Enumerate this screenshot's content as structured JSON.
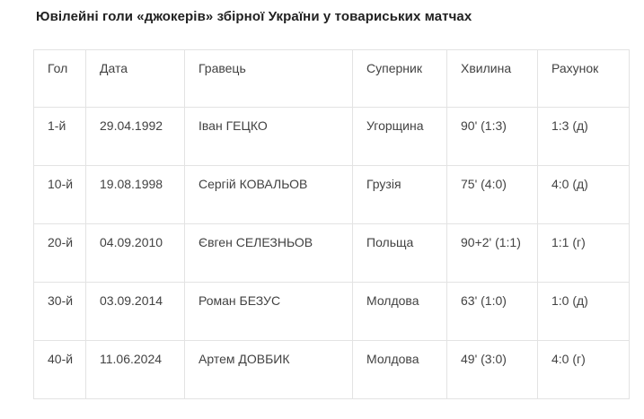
{
  "title": "Ювілейні голи «джокерів» збірної України у товариських матчах",
  "table": {
    "headers": [
      "Гол",
      "Дата",
      "Гравець",
      "Суперник",
      "Хвилина",
      "Рахунок"
    ],
    "rows": [
      [
        "1-й",
        "29.04.1992",
        "Іван ГЕЦКО",
        "Угорщина",
        "90' (1:3)",
        "1:3 (д)"
      ],
      [
        "10-й",
        "19.08.1998",
        "Сергій КОВАЛЬОВ",
        "Грузія",
        "75' (4:0)",
        "4:0 (д)"
      ],
      [
        "20-й",
        "04.09.2010",
        "Євген СЕЛЕЗНЬОВ",
        "Польща",
        "90+2' (1:1)",
        "1:1 (г)"
      ],
      [
        "30-й",
        "03.09.2014",
        "Роман БЕЗУС",
        "Молдова",
        "63' (1:0)",
        "1:0 (д)"
      ],
      [
        "40-й",
        "11.06.2024",
        "Артем ДОВБИК",
        "Молдова",
        "49' (3:0)",
        "4:0 (г)"
      ]
    ]
  },
  "colors": {
    "title_text": "#212121",
    "body_text": "#424242",
    "border": "#e3e3e3",
    "background": "#ffffff"
  }
}
